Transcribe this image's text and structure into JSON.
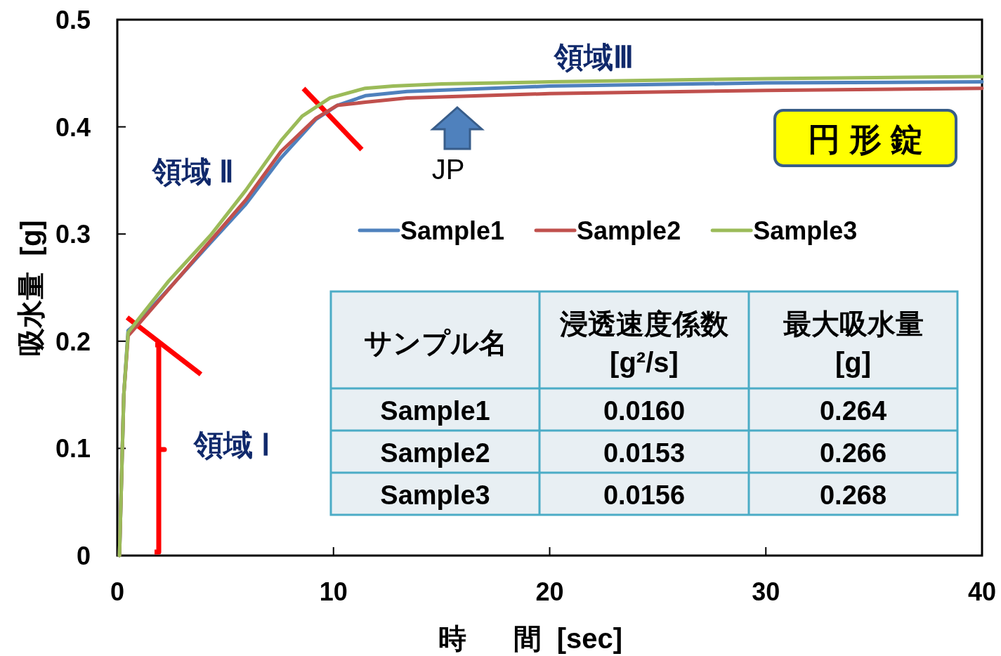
{
  "chart_data": {
    "type": "line",
    "xlabel": "時      間  [sec]",
    "ylabel": "吸水量  [g]",
    "xlim": [
      0,
      40
    ],
    "xticks": [
      0,
      10,
      20,
      30,
      40
    ],
    "ylim": [
      0,
      0.5
    ],
    "yticks": [
      0,
      0.1,
      0.2,
      0.3,
      0.4,
      0.5
    ],
    "grid": false,
    "legend": "top",
    "line_style": "solid",
    "marker": "none",
    "series": [
      {
        "name": "Sample1",
        "color": "#4f81bd",
        "x": [
          0.1,
          0.3,
          0.5,
          1.07,
          2.7,
          4.32,
          5.95,
          7.57,
          9.19,
          10.17,
          11.47,
          13.4,
          20,
          30,
          40
        ],
        "values": [
          0,
          0.15,
          0.21,
          0.22,
          0.256,
          0.292,
          0.328,
          0.371,
          0.407,
          0.42,
          0.429,
          0.433,
          0.438,
          0.441,
          0.442
        ]
      },
      {
        "name": "Sample2",
        "color": "#c0504d",
        "x": [
          0.1,
          0.3,
          0.5,
          1.07,
          2.7,
          4.32,
          5.95,
          7.57,
          9.19,
          10.17,
          11.47,
          13.4,
          20,
          30,
          40
        ],
        "values": [
          0,
          0.15,
          0.205,
          0.218,
          0.256,
          0.294,
          0.332,
          0.377,
          0.408,
          0.42,
          0.423,
          0.427,
          0.431,
          0.434,
          0.436
        ]
      },
      {
        "name": "Sample3",
        "color": "#9bbb59",
        "x": [
          0.1,
          0.3,
          0.5,
          1.07,
          2.37,
          4.32,
          5.95,
          7.57,
          8.55,
          9.84,
          11.47,
          12.77,
          15,
          20,
          30,
          40
        ],
        "values": [
          0,
          0.15,
          0.208,
          0.223,
          0.256,
          0.299,
          0.341,
          0.387,
          0.41,
          0.427,
          0.436,
          0.438,
          0.44,
          0.442,
          0.445,
          0.447
        ]
      }
    ],
    "annotations": [
      "領域 Ⅰ",
      "領域 Ⅱ",
      "領域Ⅲ",
      "JP",
      "円 形 錠",
      "サンプル名",
      "浸透速度係数",
      "[g²/s]",
      "最大吸水量",
      "[g]",
      "Sample1",
      "0.0160",
      "0.264",
      "Sample2",
      "0.0153",
      "0.266",
      "Sample3",
      "0.0156",
      "0.268"
    ]
  }
}
